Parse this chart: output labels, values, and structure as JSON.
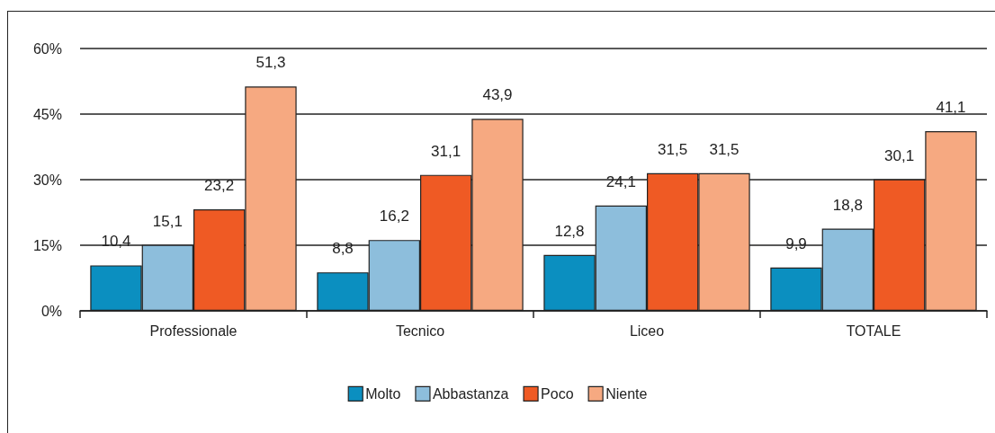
{
  "chart_data": {
    "type": "bar",
    "categories": [
      "Professionale",
      "Tecnico",
      "Liceo",
      "TOTALE"
    ],
    "series": [
      {
        "name": "Molto",
        "color": "#0b8fc0",
        "values": [
          10.4,
          8.8,
          12.8,
          9.9
        ],
        "value_labels": [
          "10,4",
          "8,8",
          "12,8",
          "9,9"
        ]
      },
      {
        "name": "Abbastanza",
        "color": "#8dbedc",
        "values": [
          15.1,
          16.2,
          24.1,
          18.8
        ],
        "value_labels": [
          "15,1",
          "16,2",
          "24,1",
          "18,8"
        ]
      },
      {
        "name": "Poco",
        "color": "#ef5a24",
        "values": [
          23.2,
          31.1,
          31.5,
          30.1
        ],
        "value_labels": [
          "23,2",
          "31,1",
          "31,5",
          "30,1"
        ]
      },
      {
        "name": "Niente",
        "color": "#f6a981",
        "values": [
          51.3,
          43.9,
          31.5,
          41.1
        ],
        "value_labels": [
          "51,3",
          "43,9",
          "31,5",
          "41,1"
        ]
      }
    ],
    "ylim": [
      0,
      60
    ],
    "yticks": [
      {
        "value": 0,
        "label": "0%"
      },
      {
        "value": 15,
        "label": "15%"
      },
      {
        "value": 30,
        "label": "30%"
      },
      {
        "value": 45,
        "label": "45%"
      },
      {
        "value": 60,
        "label": "60%"
      }
    ],
    "grid": "y",
    "legend": "bottom"
  }
}
